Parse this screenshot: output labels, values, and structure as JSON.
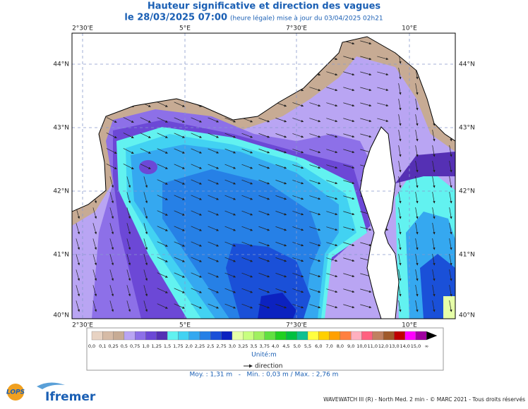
{
  "header": {
    "title": "Hauteur significative et direction des vagues",
    "date": "le 28/03/2025 07:00",
    "subtitle": "(heure légale) mise à jour du 03/04/2025 02h21"
  },
  "map": {
    "lon_labels": [
      "2°30'E",
      "5°E",
      "7°30'E",
      "10°E"
    ],
    "lat_labels": [
      "44°N",
      "43°N",
      "42°N",
      "41°N",
      "40°N"
    ]
  },
  "legend": {
    "labels": [
      "0,0",
      "0,1",
      "0,25",
      "0,5",
      "0,75",
      "1,0",
      "1,25",
      "1,5",
      "1,75",
      "2,0",
      "2,25",
      "2,5",
      "2,75",
      "3,0",
      "3,25",
      "3,5",
      "3,75",
      "4,0",
      "4,5",
      "5,0",
      "5,5",
      "6,0",
      "7,0",
      "8,0",
      "9,0",
      "10,0",
      "11,0",
      "12,0",
      "13,0",
      "14,0",
      "15,0",
      "∞"
    ],
    "colors": [
      "#e8d3c3",
      "#d6bba6",
      "#c7ab94",
      "#b9a5f3",
      "#8d70e8",
      "#6c48d6",
      "#5530b4",
      "#62f2f0",
      "#42d2f2",
      "#35a8f0",
      "#2680e6",
      "#1a50d8",
      "#0c22c0",
      "#e6ffa8",
      "#c8ff80",
      "#a0f060",
      "#60e040",
      "#20d020",
      "#00c040",
      "#10c090",
      "#ffff40",
      "#ffd000",
      "#ffa000",
      "#ff8040",
      "#ffb0c0",
      "#ff6080",
      "#c08060",
      "#a05a2a",
      "#c00000",
      "#ff00ff",
      "#a000a0"
    ],
    "unit": "Unité:m",
    "direction": "direction"
  },
  "stats": "Moy. : 1,31 m   -   Min. : 0,03 m / Max. : 2,76 m",
  "footer": "WAVEWATCH III (R) - North Med. 2 min - © MARC 2021 - Tous droits réservés",
  "logos": {
    "lops": "LOPS",
    "ifremer": "Ifremer"
  }
}
